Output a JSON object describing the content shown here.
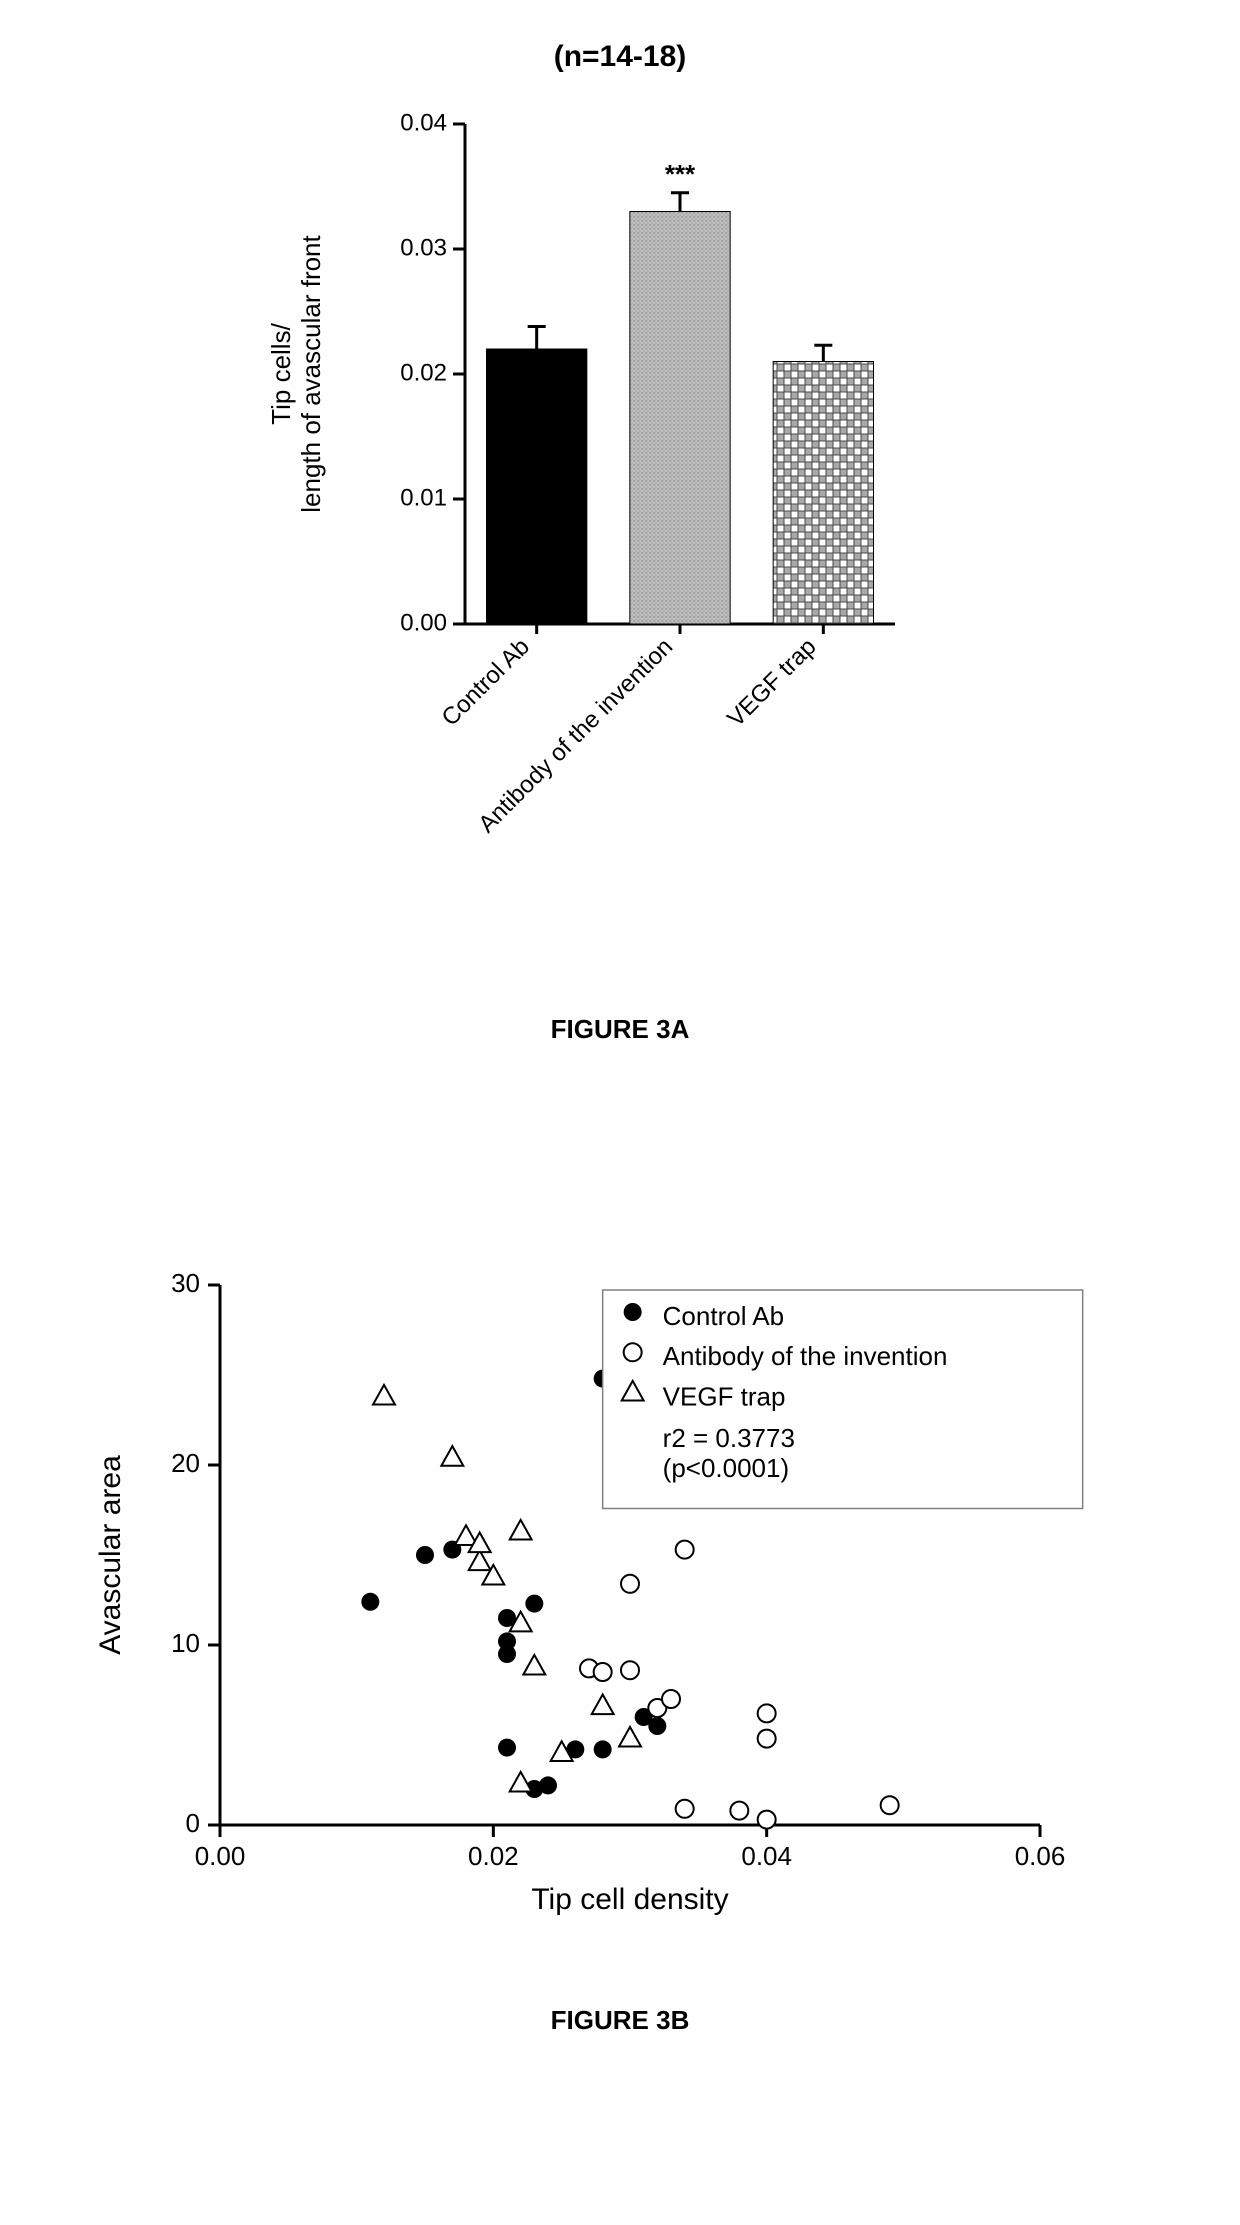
{
  "figA": {
    "type": "bar",
    "title_above": "(n=14-18)",
    "title_fontsize": 30,
    "ylabel": "Tip cells/\nlength of avascular front",
    "label_fontsize": 26,
    "caption": "FIGURE 3A",
    "caption_fontsize": 26,
    "categories": [
      "Control Ab",
      "Antibody of the invention",
      "VEGF trap"
    ],
    "values": [
      0.022,
      0.033,
      0.021
    ],
    "errors": [
      0.0018,
      0.0015,
      0.0013
    ],
    "fills": [
      "solid-black",
      "noise-gray",
      "crosshatch"
    ],
    "sig_marker": {
      "index": 1,
      "text": "***"
    },
    "ylim": [
      0.0,
      0.04
    ],
    "yticks": [
      0.0,
      0.01,
      0.02,
      0.03,
      0.04
    ],
    "ytick_labels": [
      "0.00",
      "0.01",
      "0.02",
      "0.03",
      "0.04"
    ],
    "tick_fontsize": 24,
    "bar_width_rel": 0.7,
    "axis_line_width": 3,
    "error_cap_width": 18,
    "error_line_width": 3,
    "xtick_label_rotation": 45,
    "xtick_label_fontsize": 24,
    "background_color": "#ffffff",
    "axis_color": "#000000"
  },
  "figB": {
    "type": "scatter",
    "caption": "FIGURE 3B",
    "caption_fontsize": 26,
    "xlabel": "Tip cell density",
    "ylabel": "Avascular area",
    "label_fontsize": 30,
    "xlim": [
      0.0,
      0.06
    ],
    "xticks": [
      0.0,
      0.02,
      0.04,
      0.06
    ],
    "xtick_labels": [
      "0.00",
      "0.02",
      "0.04",
      "0.06"
    ],
    "ylim": [
      0,
      30
    ],
    "yticks": [
      0,
      10,
      20,
      30
    ],
    "ytick_labels": [
      "0",
      "10",
      "20",
      "30"
    ],
    "tick_fontsize": 26,
    "axis_line_width": 3,
    "tick_length": 12,
    "background_color": "#ffffff",
    "axis_color": "#000000",
    "legend": {
      "items": [
        {
          "marker": "filled-circle",
          "label": "Control Ab"
        },
        {
          "marker": "open-circle",
          "label": "Antibody of the invention"
        },
        {
          "marker": "open-triangle",
          "label": "VEGF trap"
        }
      ],
      "stat_line1": "r2 = 0.3773",
      "stat_line2": "(p<0.0001)",
      "fontsize": 26,
      "box_stroke": "#808080",
      "box_stroke_width": 1.5
    },
    "marker_size": 9,
    "marker_stroke_width": 2,
    "series": {
      "control_ab": {
        "marker": "filled-circle",
        "points": [
          [
            0.011,
            12.4
          ],
          [
            0.015,
            15.0
          ],
          [
            0.017,
            15.3
          ],
          [
            0.021,
            11.5
          ],
          [
            0.021,
            10.2
          ],
          [
            0.021,
            9.5
          ],
          [
            0.023,
            12.3
          ],
          [
            0.021,
            4.3
          ],
          [
            0.023,
            2.0
          ],
          [
            0.024,
            2.2
          ],
          [
            0.026,
            4.2
          ],
          [
            0.028,
            4.2
          ],
          [
            0.028,
            24.8
          ],
          [
            0.031,
            6.0
          ],
          [
            0.032,
            5.5
          ]
        ]
      },
      "antibody": {
        "marker": "open-circle",
        "points": [
          [
            0.027,
            8.7
          ],
          [
            0.028,
            8.5
          ],
          [
            0.03,
            8.6
          ],
          [
            0.03,
            13.4
          ],
          [
            0.032,
            6.5
          ],
          [
            0.033,
            7.0
          ],
          [
            0.034,
            15.3
          ],
          [
            0.034,
            0.9
          ],
          [
            0.038,
            0.8
          ],
          [
            0.04,
            6.2
          ],
          [
            0.04,
            4.8
          ],
          [
            0.04,
            0.3
          ],
          [
            0.049,
            1.1
          ]
        ]
      },
      "vegf_trap": {
        "marker": "open-triangle",
        "points": [
          [
            0.012,
            23.8
          ],
          [
            0.017,
            20.4
          ],
          [
            0.018,
            16.0
          ],
          [
            0.019,
            14.6
          ],
          [
            0.019,
            15.6
          ],
          [
            0.02,
            13.8
          ],
          [
            0.022,
            16.3
          ],
          [
            0.022,
            11.2
          ],
          [
            0.022,
            2.3
          ],
          [
            0.023,
            8.8
          ],
          [
            0.025,
            4.0
          ],
          [
            0.028,
            6.6
          ],
          [
            0.03,
            4.8
          ]
        ]
      }
    }
  }
}
